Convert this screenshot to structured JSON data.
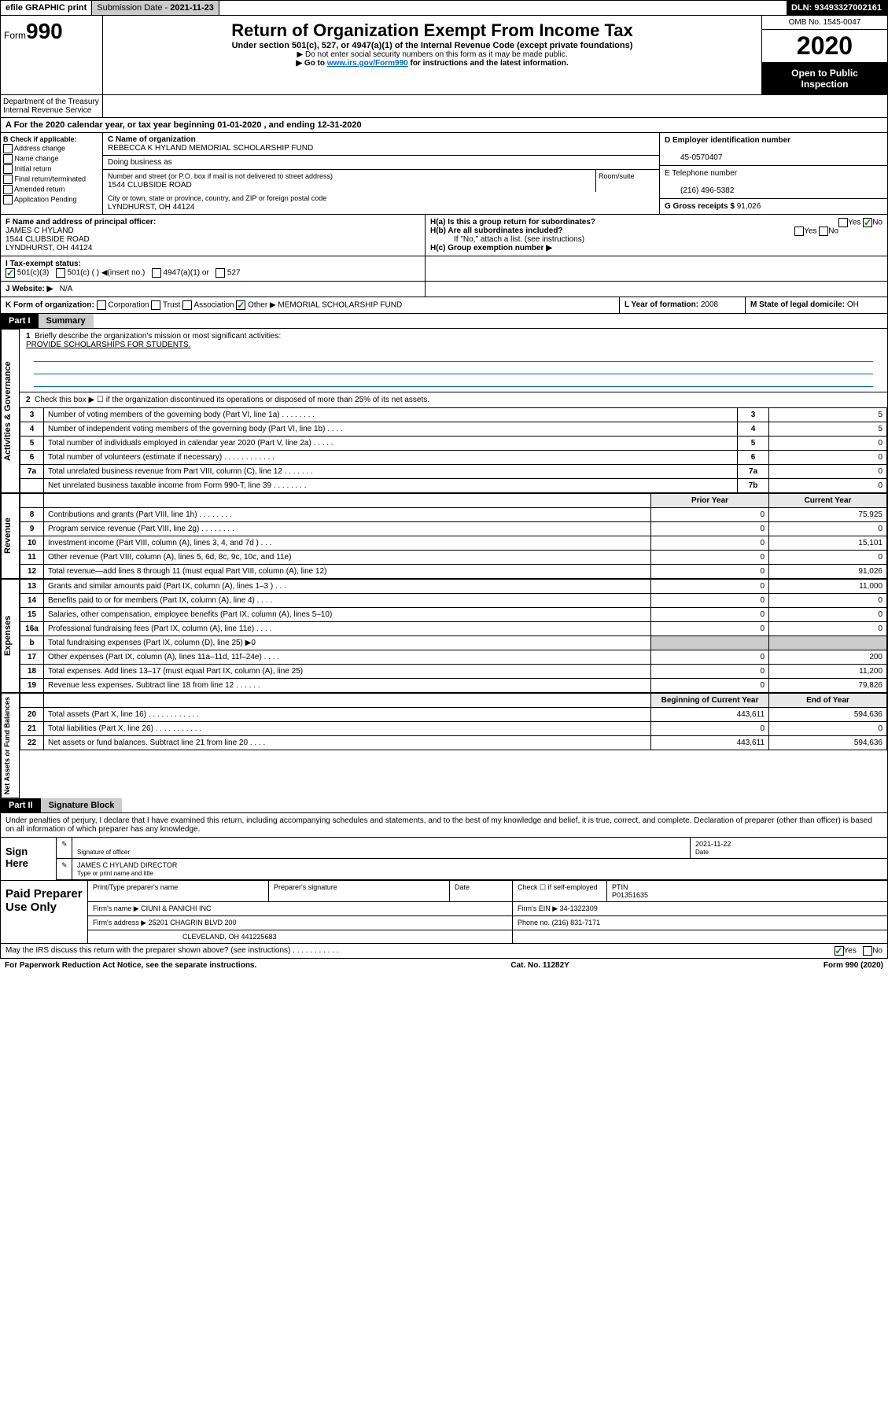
{
  "header": {
    "efile": "efile GRAPHIC print",
    "sub_label": "Submission Date - ",
    "sub_date": "2021-11-23",
    "dln_label": "DLN: ",
    "dln": "93493327002161"
  },
  "form": {
    "prefix": "Form",
    "number": "990",
    "title": "Return of Organization Exempt From Income Tax",
    "sub1": "Under section 501(c), 527, or 4947(a)(1) of the Internal Revenue Code (except private foundations)",
    "sub2": "▶ Do not enter social security numbers on this form as it may be made public.",
    "sub3_pre": "▶ Go to ",
    "sub3_link": "www.irs.gov/Form990",
    "sub3_post": " for instructions and the latest information.",
    "omb": "OMB No. 1545-0047",
    "year": "2020",
    "open": "Open to Public Inspection",
    "dept": "Department of the Treasury\nInternal Revenue Service"
  },
  "period": {
    "text_pre": "For the 2020 calendar year, or tax year beginning ",
    "begin": "01-01-2020",
    "text_mid": " , and ending ",
    "end": "12-31-2020"
  },
  "boxB": {
    "title": "B Check if applicable:",
    "opts": [
      "Address change",
      "Name change",
      "Initial return",
      "Final return/terminated",
      "Amended return",
      "Application Pending"
    ]
  },
  "boxC": {
    "label": "C Name of organization",
    "name": "REBECCA K HYLAND MEMORIAL SCHOLARSHIP FUND",
    "dba_label": "Doing business as",
    "dba": "",
    "addr_label": "Number and street (or P.O. box if mail is not delivered to street address)",
    "room_label": "Room/suite",
    "addr": "1544 CLUBSIDE ROAD",
    "city_label": "City or town, state or province, country, and ZIP or foreign postal code",
    "city": "LYNDHURST, OH  44124"
  },
  "boxD": {
    "label": "D Employer identification number",
    "value": "45-0570407"
  },
  "boxE": {
    "label": "E Telephone number",
    "value": "(216) 496-5382"
  },
  "boxG": {
    "label": "G Gross receipts $",
    "value": "91,026"
  },
  "boxF": {
    "label": "F Name and address of principal officer:",
    "name": "JAMES C HYLAND",
    "addr1": "1544 CLUBSIDE ROAD",
    "addr2": "LYNDHURST, OH  44124"
  },
  "boxH": {
    "ha": "H(a)  Is this a group return for subordinates?",
    "hb": "H(b)  Are all subordinates included?",
    "hb_note": "If \"No,\" attach a list. (see instructions)",
    "hc": "H(c)  Group exemption number ▶",
    "yes": "Yes",
    "no": "No"
  },
  "boxI": {
    "label": "I  Tax-exempt status:",
    "o1": "501(c)(3)",
    "o2": "501(c) (  )",
    "o2b": "◀(insert no.)",
    "o3": "4947(a)(1) or",
    "o4": "527"
  },
  "boxJ": {
    "label": "J  Website: ▶",
    "value": "N/A"
  },
  "boxK": {
    "label": "K Form of organization:",
    "o1": "Corporation",
    "o2": "Trust",
    "o3": "Association",
    "o4": "Other ▶",
    "other": "MEMORIAL SCHOLARSHIP FUND"
  },
  "boxL": {
    "label": "L Year of formation:",
    "value": "2008"
  },
  "boxM": {
    "label": "M State of legal domicile:",
    "value": "OH"
  },
  "part1": {
    "tag": "Part I",
    "name": "Summary",
    "l1": "Briefly describe the organization's mission or most significant activities:",
    "mission": "PROVIDE SCHOLARSHIPS FOR STUDENTS.",
    "l2": "Check this box ▶ ☐  if the organization discontinued its operations or disposed of more than 25% of its net assets.",
    "side_ag": "Activities & Governance",
    "side_rev": "Revenue",
    "side_exp": "Expenses",
    "side_na": "Net Assets or Fund Balances",
    "hdr_prior": "Prior Year",
    "hdr_curr": "Current Year",
    "hdr_begin": "Beginning of Current Year",
    "hdr_end": "End of Year",
    "rows_ag": [
      {
        "n": "3",
        "t": "Number of voting members of the governing body (Part VI, line 1a)  .   .   .   .   .   .   .   .",
        "c": "3",
        "v": "5"
      },
      {
        "n": "4",
        "t": "Number of independent voting members of the governing body (Part VI, line 1b)  .   .   .   .",
        "c": "4",
        "v": "5"
      },
      {
        "n": "5",
        "t": "Total number of individuals employed in calendar year 2020 (Part V, line 2a)  .   .   .   .   .",
        "c": "5",
        "v": "0"
      },
      {
        "n": "6",
        "t": "Total number of volunteers (estimate if necessary)  .   .   .   .   .   .   .   .   .   .   .   .",
        "c": "6",
        "v": "0"
      },
      {
        "n": "7a",
        "t": "Total unrelated business revenue from Part VIII, column (C), line 12  .   .   .   .   .   .   .",
        "c": "7a",
        "v": "0"
      },
      {
        "n": "",
        "t": "Net unrelated business taxable income from Form 990-T, line 39  .   .   .   .   .   .   .   .",
        "c": "7b",
        "v": "0"
      }
    ],
    "rows_rev": [
      {
        "n": "8",
        "t": "Contributions and grants (Part VIII, line 1h)  .   .   .   .   .   .   .   .",
        "p": "0",
        "c": "75,925"
      },
      {
        "n": "9",
        "t": "Program service revenue (Part VIII, line 2g)  .   .   .   .   .   .   .   .",
        "p": "0",
        "c": "0"
      },
      {
        "n": "10",
        "t": "Investment income (Part VIII, column (A), lines 3, 4, and 7d )  .   .   .",
        "p": "0",
        "c": "15,101"
      },
      {
        "n": "11",
        "t": "Other revenue (Part VIII, column (A), lines 5, 6d, 8c, 9c, 10c, and 11e)",
        "p": "0",
        "c": "0"
      },
      {
        "n": "12",
        "t": "Total revenue—add lines 8 through 11 (must equal Part VIII, column (A), line 12)",
        "p": "0",
        "c": "91,026"
      }
    ],
    "rows_exp": [
      {
        "n": "13",
        "t": "Grants and similar amounts paid (Part IX, column (A), lines 1–3 )  .   .   .",
        "p": "0",
        "c": "11,000"
      },
      {
        "n": "14",
        "t": "Benefits paid to or for members (Part IX, column (A), line 4)  .   .   .   .",
        "p": "0",
        "c": "0"
      },
      {
        "n": "15",
        "t": "Salaries, other compensation, employee benefits (Part IX, column (A), lines 5–10)",
        "p": "0",
        "c": "0"
      },
      {
        "n": "16a",
        "t": "Professional fundraising fees (Part IX, column (A), line 11e)  .   .   .   .",
        "p": "0",
        "c": "0"
      },
      {
        "n": "b",
        "t": "Total fundraising expenses (Part IX, column (D), line 25) ▶0",
        "shade": true
      },
      {
        "n": "17",
        "t": "Other expenses (Part IX, column (A), lines 11a–11d, 11f–24e)  .   .   .   .",
        "p": "0",
        "c": "200"
      },
      {
        "n": "18",
        "t": "Total expenses. Add lines 13–17 (must equal Part IX, column (A), line 25)",
        "p": "0",
        "c": "11,200"
      },
      {
        "n": "19",
        "t": "Revenue less expenses. Subtract line 18 from line 12  .   .   .   .   .   .",
        "p": "0",
        "c": "79,826"
      }
    ],
    "rows_na": [
      {
        "n": "20",
        "t": "Total assets (Part X, line 16)  .   .   .   .   .   .   .   .   .   .   .   .",
        "p": "443,611",
        "c": "594,636"
      },
      {
        "n": "21",
        "t": "Total liabilities (Part X, line 26)  .   .   .   .   .   .   .   .   .   .   .",
        "p": "0",
        "c": "0"
      },
      {
        "n": "22",
        "t": "Net assets or fund balances. Subtract line 21 from line 20  .   .   .   .",
        "p": "443,611",
        "c": "594,636"
      }
    ]
  },
  "part2": {
    "tag": "Part II",
    "name": "Signature Block",
    "perjury": "Under penalties of perjury, I declare that I have examined this return, including accompanying schedules and statements, and to the best of my knowledge and belief, it is true, correct, and complete. Declaration of preparer (other than officer) is based on all information of which preparer has any knowledge."
  },
  "sign": {
    "here": "Sign Here",
    "sig_label": "Signature of officer",
    "date_label": "Date",
    "date": "2021-11-22",
    "name": "JAMES C HYLAND  DIRECTOR",
    "name_label": "Type or print name and title"
  },
  "prep": {
    "here": "Paid Preparer Use Only",
    "c1": "Print/Type preparer's name",
    "c2": "Preparer's signature",
    "c3": "Date",
    "c4a": "Check ☐ if self-employed",
    "c4b": "PTIN",
    "ptin": "P01351635",
    "firm_label": "Firm's name    ▶",
    "firm": "CIUNI & PANICHI INC",
    "ein_label": "Firm's EIN ▶",
    "ein": "34-1322309",
    "addr_label": "Firm's address ▶",
    "addr1": "25201 CHAGRIN BLVD 200",
    "addr2": "CLEVELAND, OH  441225683",
    "phone_label": "Phone no.",
    "phone": "(216) 831-7171"
  },
  "footer": {
    "q": "May the IRS discuss this return with the preparer shown above? (see instructions)  .   .   .   .   .   .   .   .   .   .   .",
    "yes": "Yes",
    "no": "No",
    "paperwork": "For Paperwork Reduction Act Notice, see the separate instructions.",
    "cat": "Cat. No. 11282Y",
    "form": "Form 990 (2020)"
  }
}
